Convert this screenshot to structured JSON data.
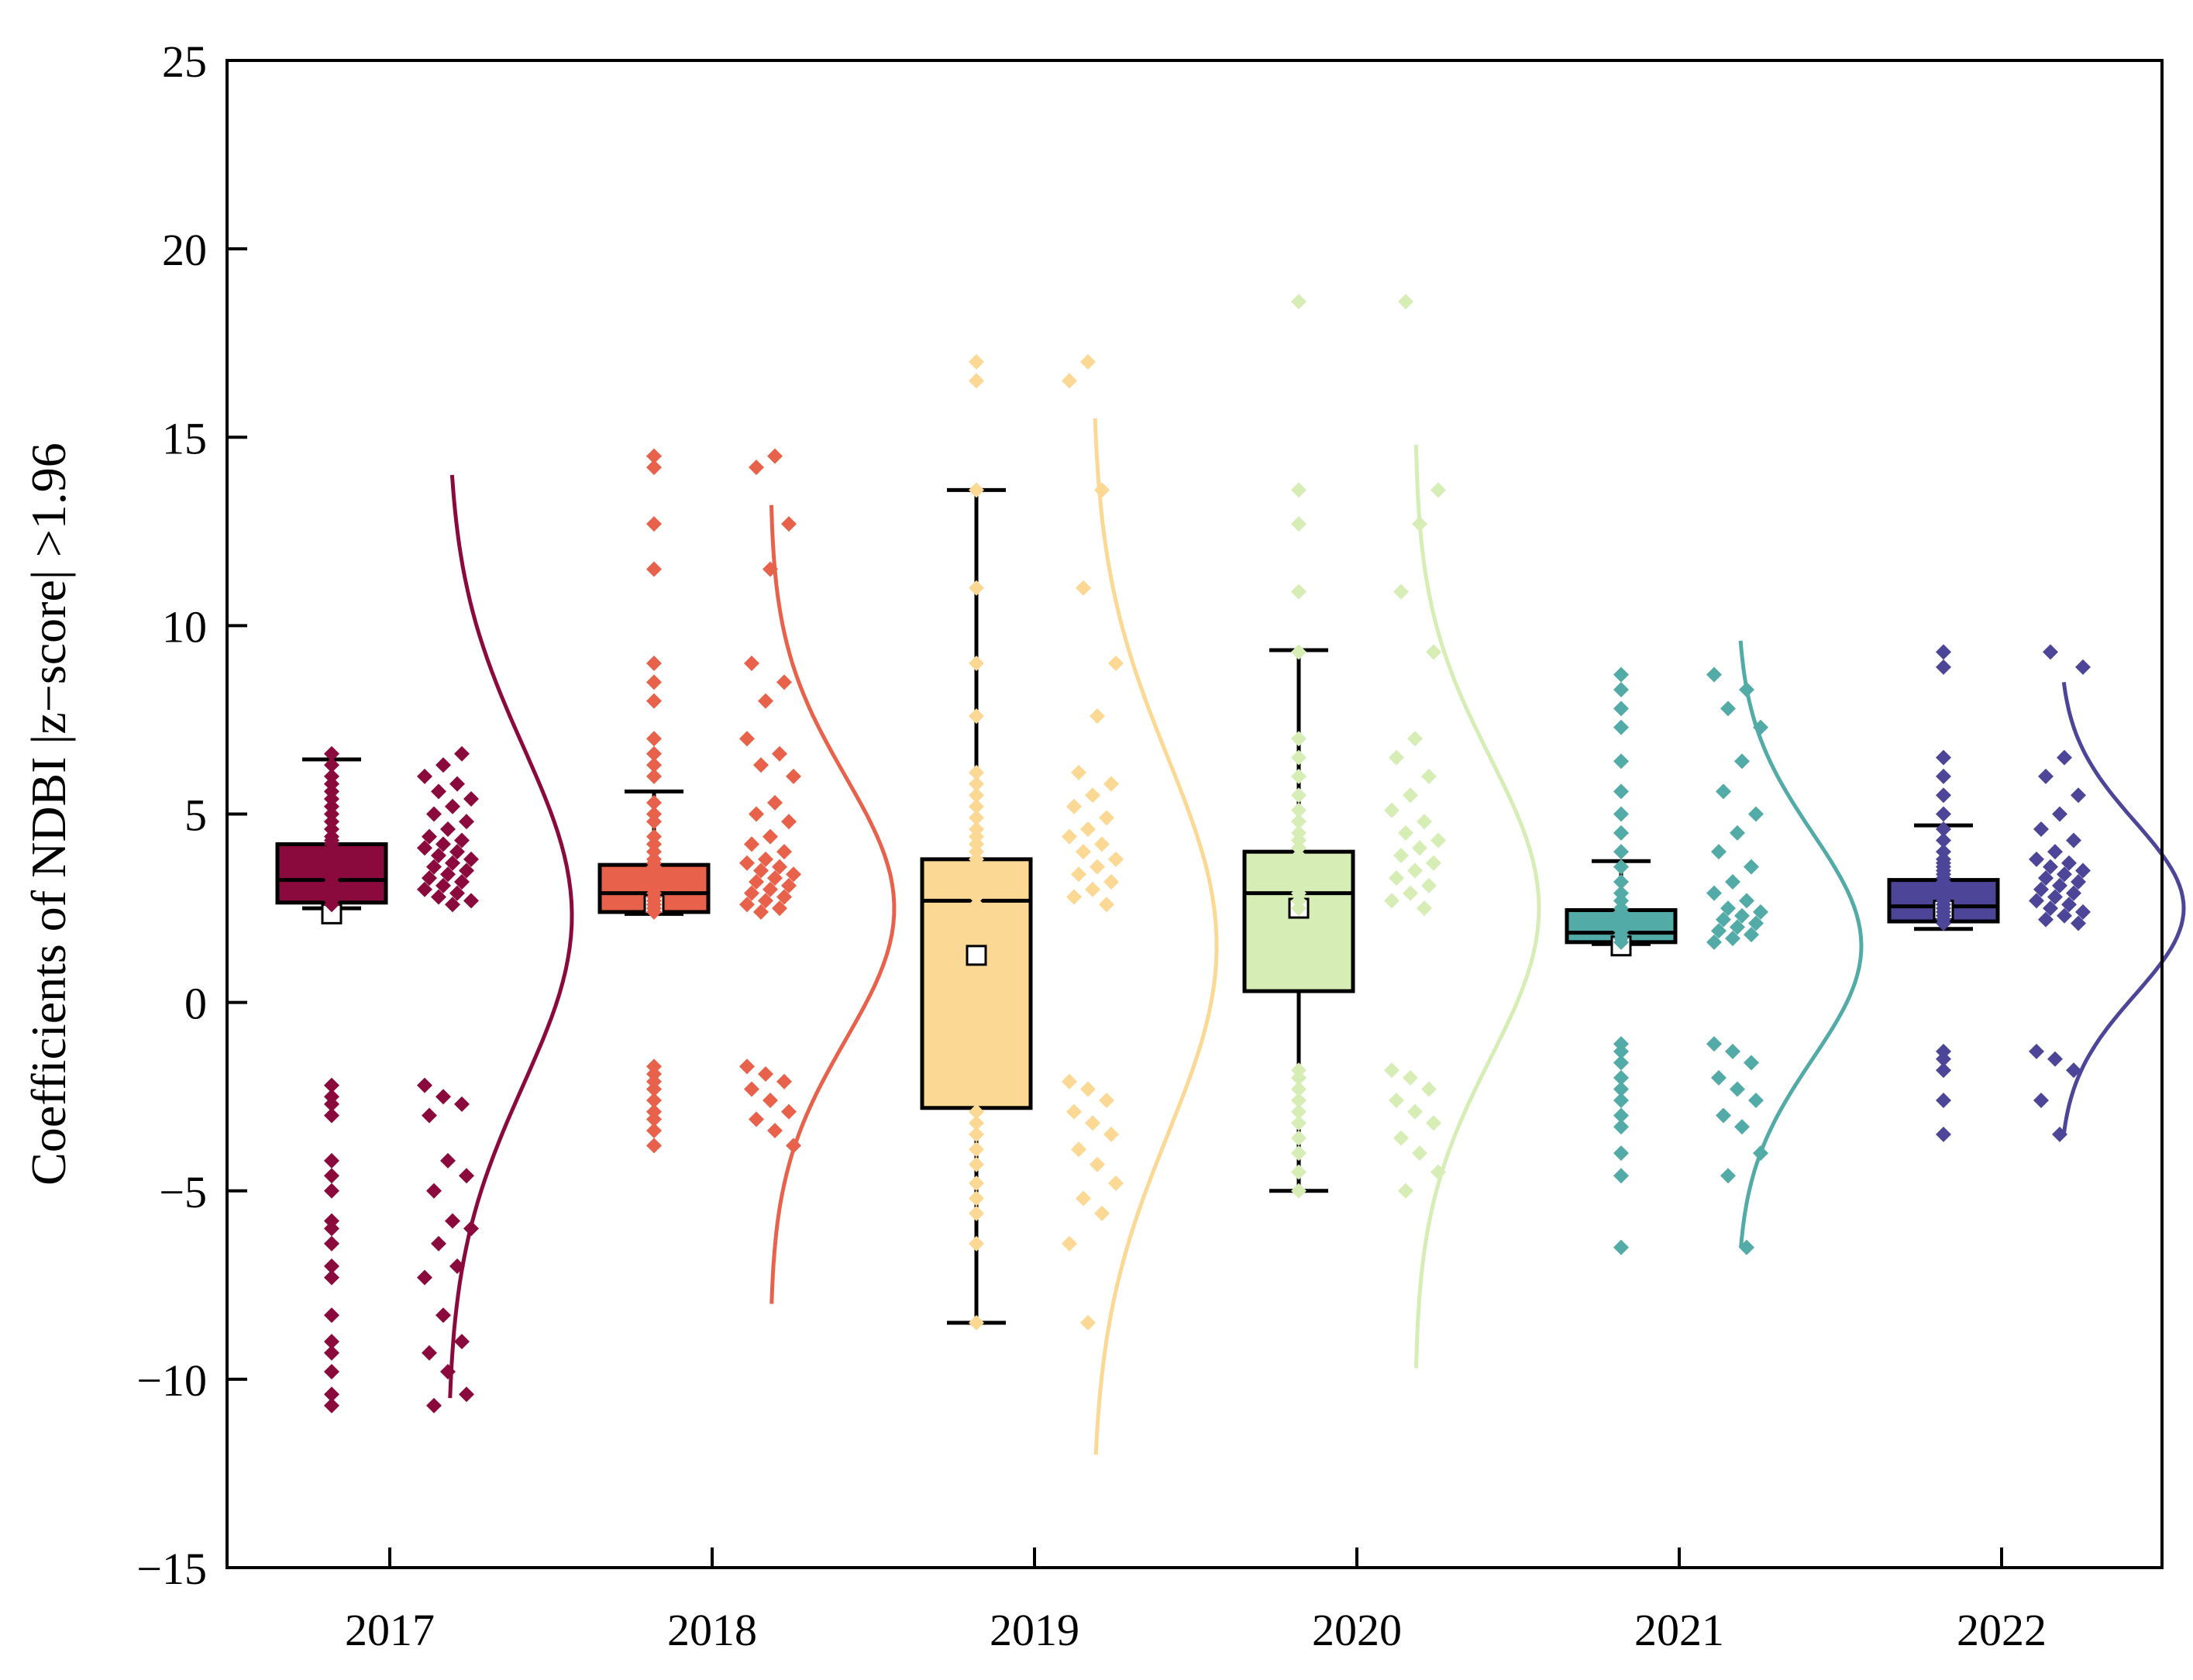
{
  "chart_data": {
    "type": "box",
    "title": "",
    "xlabel": "",
    "ylabel": "Coefficients of NDBI |z−score| >1.96",
    "ylim": [
      -15,
      25
    ],
    "yticks": [
      -15,
      -10,
      -5,
      0,
      5,
      10,
      15,
      20,
      25
    ],
    "ytick_labels": [
      "−15",
      "−10",
      "−5",
      "0",
      "5",
      "10",
      "15",
      "20",
      "25"
    ],
    "categories": [
      "2017",
      "2018",
      "2019",
      "2020",
      "2021",
      "2022"
    ],
    "grid": false,
    "legend": "none",
    "series": [
      {
        "name": "2017",
        "color": "#8b0a3d",
        "box": {
          "whisker_low": 2.5,
          "q1": 2.65,
          "median": 3.25,
          "q3": 4.2,
          "whisker_high": 6.45,
          "mean": 2.35
        },
        "points": [
          -2.2,
          -2.5,
          -2.7,
          -3.0,
          -4.2,
          -4.6,
          -5.0,
          -5.8,
          -6.0,
          -6.4,
          -7.0,
          -7.3,
          -8.3,
          -9.0,
          -9.3,
          -9.8,
          -10.4,
          -10.7,
          2.6,
          2.7,
          2.8,
          2.9,
          3.0,
          3.1,
          3.2,
          3.3,
          3.4,
          3.5,
          3.6,
          3.7,
          3.8,
          3.9,
          4.0,
          4.1,
          4.2,
          4.3,
          4.4,
          4.6,
          4.8,
          5.0,
          5.2,
          5.4,
          5.6,
          5.8,
          6.0,
          6.3,
          6.6
        ],
        "curve_range": [
          -10.5,
          14.0
        ],
        "curve_mean": 2.3,
        "curve_sd": 4.5
      },
      {
        "name": "2018",
        "color": "#e8614a",
        "box": {
          "whisker_low": 2.35,
          "q1": 2.4,
          "median": 2.9,
          "q3": 3.65,
          "whisker_high": 5.6,
          "mean": 2.6
        },
        "points": [
          -1.7,
          -1.9,
          -2.1,
          -2.3,
          -2.6,
          -2.9,
          -3.1,
          -3.4,
          -3.8,
          2.4,
          2.5,
          2.6,
          2.7,
          2.8,
          2.9,
          3.0,
          3.1,
          3.2,
          3.3,
          3.4,
          3.5,
          3.6,
          3.7,
          3.8,
          4.0,
          4.2,
          4.4,
          4.8,
          5.0,
          5.3,
          6.0,
          6.3,
          6.6,
          7.0,
          8.0,
          8.5,
          9.0,
          11.5,
          12.7,
          14.2,
          14.5
        ],
        "curve_range": [
          -8.0,
          13.2
        ],
        "curve_mean": 2.5,
        "curve_sd": 3.5
      },
      {
        "name": "2019",
        "color": "#fbd893",
        "box": {
          "whisker_low": -8.5,
          "q1": -2.8,
          "median": 2.7,
          "q3": 3.8,
          "whisker_high": 13.6,
          "mean": 1.25
        },
        "points": [
          -2.1,
          -2.3,
          -2.6,
          -2.9,
          -3.2,
          -3.5,
          -3.9,
          -4.3,
          -4.8,
          -5.2,
          -5.6,
          -6.4,
          -8.5,
          2.6,
          2.8,
          3.0,
          3.2,
          3.4,
          3.6,
          3.8,
          4.0,
          4.2,
          4.4,
          4.6,
          4.9,
          5.2,
          5.5,
          5.8,
          6.1,
          7.6,
          9.0,
          11.0,
          13.6,
          16.5,
          17.0
        ],
        "curve_range": [
          -12.0,
          15.5
        ],
        "curve_mean": 1.5,
        "curve_sd": 5.0
      },
      {
        "name": "2020",
        "color": "#d6edb5",
        "box": {
          "whisker_low": -5.0,
          "q1": 0.3,
          "median": 2.9,
          "q3": 4.0,
          "whisker_high": 9.35,
          "mean": 2.5
        },
        "points": [
          -1.8,
          -2.0,
          -2.3,
          -2.6,
          -2.9,
          -3.2,
          -3.6,
          -4.0,
          -4.5,
          -5.0,
          2.5,
          2.7,
          2.9,
          3.1,
          3.3,
          3.5,
          3.7,
          3.9,
          4.1,
          4.3,
          4.5,
          4.8,
          5.1,
          5.5,
          6.0,
          6.5,
          7.0,
          9.3,
          10.9,
          12.7,
          13.6,
          18.6
        ],
        "curve_range": [
          -9.7,
          14.8
        ],
        "curve_mean": 2.5,
        "curve_sd": 4.0
      },
      {
        "name": "2021",
        "color": "#52aba6",
        "box": {
          "whisker_low": 1.55,
          "q1": 1.6,
          "median": 1.85,
          "q3": 2.45,
          "whisker_high": 3.75,
          "mean": 1.5
        },
        "points": [
          -1.1,
          -1.3,
          -1.6,
          -2.0,
          -2.3,
          -2.6,
          -3.0,
          -3.3,
          -4.0,
          -4.6,
          -6.5,
          1.6,
          1.7,
          1.8,
          1.9,
          2.0,
          2.1,
          2.2,
          2.3,
          2.4,
          2.5,
          2.7,
          2.9,
          3.2,
          3.6,
          4.0,
          4.5,
          5.0,
          5.6,
          6.4,
          7.3,
          7.8,
          8.3,
          8.7
        ],
        "curve_range": [
          -6.5,
          9.6
        ],
        "curve_mean": 1.5,
        "curve_sd": 3.0
      },
      {
        "name": "2022",
        "color": "#4d4598",
        "box": {
          "whisker_low": 1.95,
          "q1": 2.15,
          "median": 2.55,
          "q3": 3.25,
          "whisker_high": 4.7,
          "mean": 2.45
        },
        "points": [
          -1.3,
          -1.5,
          -1.8,
          -2.6,
          -3.5,
          2.1,
          2.2,
          2.3,
          2.4,
          2.5,
          2.6,
          2.7,
          2.8,
          2.9,
          3.0,
          3.1,
          3.2,
          3.3,
          3.4,
          3.5,
          3.6,
          3.7,
          3.8,
          4.0,
          4.3,
          4.6,
          5.0,
          5.5,
          6.0,
          6.5,
          8.9,
          9.3
        ],
        "curve_range": [
          -3.5,
          8.5
        ],
        "curve_mean": 2.5,
        "curve_sd": 2.3
      }
    ]
  }
}
